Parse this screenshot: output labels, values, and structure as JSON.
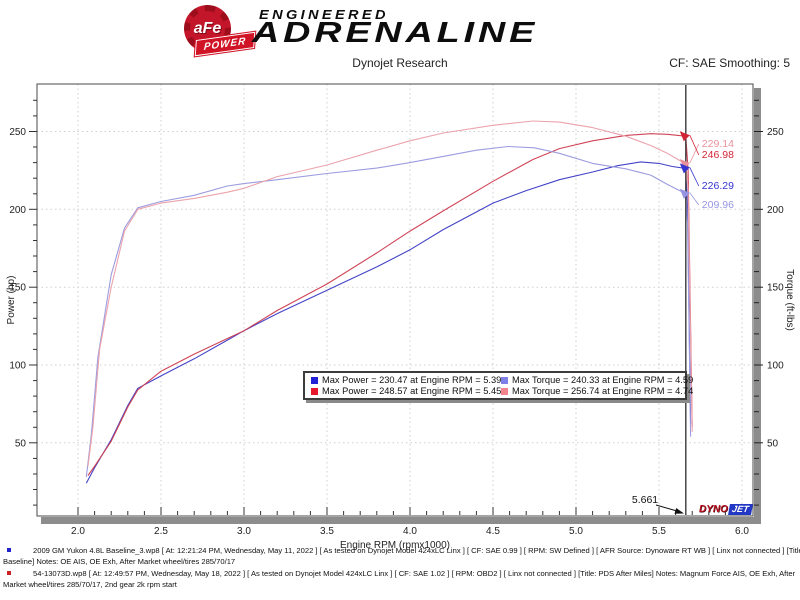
{
  "header": {
    "badge": {
      "brand": "aFe",
      "sub": "POWER"
    },
    "tagline_top": "ENGINEERED",
    "tagline_main": "ADRENALINE"
  },
  "titlebar": {
    "title": "Dynojet Research",
    "cf_label": "CF: SAE Smoothing: 5"
  },
  "watermark": {
    "dyno": "DYNO",
    "jet": "JET"
  },
  "chart_data": {
    "type": "line",
    "title": "Dynojet Research",
    "xlabel": "Engine RPM (rpmx1000)",
    "ylabel_left": "Power (hp)",
    "ylabel_right": "Torque (ft-lbs)",
    "xlim": [
      1.753,
      6.066
    ],
    "ylim": [
      3,
      280.5
    ],
    "x_ticks_major": [
      2.0,
      2.5,
      3.0,
      3.5,
      4.0,
      4.5,
      5.0,
      5.5,
      6.0
    ],
    "y_ticks_major": [
      50,
      100,
      150,
      200,
      250
    ],
    "x_minor_step": 0.1,
    "y_minor_step": 10,
    "grid": "dotted-at-majors",
    "legend_position": "center",
    "series": [
      {
        "id": "power-baseline",
        "name": "Power Baseline",
        "axis": "power",
        "color": "#4343c8",
        "points": [
          [
            2.05,
            24
          ],
          [
            2.1,
            34
          ],
          [
            2.2,
            52
          ],
          [
            2.3,
            74
          ],
          [
            2.36,
            85
          ],
          [
            2.5,
            93
          ],
          [
            2.7,
            104
          ],
          [
            2.9,
            116
          ],
          [
            3.0,
            122
          ],
          [
            3.2,
            133
          ],
          [
            3.5,
            148
          ],
          [
            3.8,
            163
          ],
          [
            4.0,
            174
          ],
          [
            4.2,
            187
          ],
          [
            4.5,
            204
          ],
          [
            4.7,
            212
          ],
          [
            4.9,
            219
          ],
          [
            5.1,
            224
          ],
          [
            5.25,
            228
          ],
          [
            5.39,
            230.47
          ],
          [
            5.5,
            229.5
          ],
          [
            5.58,
            227.5
          ],
          [
            5.661,
            226.29
          ],
          [
            5.672,
            200
          ],
          [
            5.69,
            62
          ]
        ]
      },
      {
        "id": "power-after",
        "name": "Power After",
        "axis": "power",
        "color": "#cf4456",
        "points": [
          [
            2.06,
            29
          ],
          [
            2.1,
            35
          ],
          [
            2.2,
            51
          ],
          [
            2.3,
            73
          ],
          [
            2.36,
            84
          ],
          [
            2.5,
            96
          ],
          [
            2.7,
            107
          ],
          [
            2.9,
            117
          ],
          [
            3.0,
            122
          ],
          [
            3.2,
            135
          ],
          [
            3.5,
            152
          ],
          [
            3.8,
            172
          ],
          [
            4.0,
            186
          ],
          [
            4.2,
            199
          ],
          [
            4.5,
            218
          ],
          [
            4.74,
            232
          ],
          [
            4.9,
            239
          ],
          [
            5.1,
            244
          ],
          [
            5.3,
            247.5
          ],
          [
            5.45,
            248.57
          ],
          [
            5.55,
            248.2
          ],
          [
            5.661,
            246.98
          ],
          [
            5.675,
            225
          ],
          [
            5.7,
            60
          ]
        ]
      },
      {
        "id": "torque-baseline",
        "name": "Torque Baseline",
        "axis": "torque",
        "color": "#9c9ce0",
        "points": [
          [
            2.05,
            28
          ],
          [
            2.08,
            55
          ],
          [
            2.12,
            105
          ],
          [
            2.2,
            158
          ],
          [
            2.28,
            188
          ],
          [
            2.36,
            201
          ],
          [
            2.5,
            205
          ],
          [
            2.7,
            209
          ],
          [
            2.9,
            215
          ],
          [
            3.0,
            216.5
          ],
          [
            3.2,
            219
          ],
          [
            3.5,
            223
          ],
          [
            3.8,
            226.5
          ],
          [
            4.0,
            230
          ],
          [
            4.2,
            234
          ],
          [
            4.4,
            238
          ],
          [
            4.59,
            240.33
          ],
          [
            4.75,
            239.5
          ],
          [
            4.9,
            236
          ],
          [
            5.1,
            229.5
          ],
          [
            5.3,
            226
          ],
          [
            5.45,
            222
          ],
          [
            5.55,
            216
          ],
          [
            5.661,
            209.96
          ],
          [
            5.672,
            190
          ],
          [
            5.69,
            54
          ]
        ]
      },
      {
        "id": "torque-after",
        "name": "Torque After",
        "axis": "torque",
        "color": "#eba3ac",
        "points": [
          [
            2.06,
            35
          ],
          [
            2.09,
            60
          ],
          [
            2.13,
            110
          ],
          [
            2.2,
            150
          ],
          [
            2.28,
            186
          ],
          [
            2.36,
            200
          ],
          [
            2.5,
            204
          ],
          [
            2.7,
            207
          ],
          [
            2.9,
            211
          ],
          [
            3.0,
            213.5
          ],
          [
            3.2,
            221
          ],
          [
            3.5,
            228.5
          ],
          [
            3.8,
            238
          ],
          [
            4.0,
            244
          ],
          [
            4.2,
            249
          ],
          [
            4.5,
            254
          ],
          [
            4.74,
            256.74
          ],
          [
            4.9,
            256
          ],
          [
            5.1,
            252.5
          ],
          [
            5.3,
            247
          ],
          [
            5.45,
            241
          ],
          [
            5.55,
            236
          ],
          [
            5.661,
            229.14
          ],
          [
            5.675,
            212
          ],
          [
            5.7,
            57
          ]
        ]
      }
    ],
    "cursor": {
      "rpm": 5.661,
      "label": "5.661",
      "readouts": [
        {
          "value": "229.14",
          "color": "#e8919c"
        },
        {
          "value": "246.98",
          "color": "#d32436"
        },
        {
          "value": "226.29",
          "color": "#3535cf"
        },
        {
          "value": "209.96",
          "color": "#9595e2"
        }
      ]
    },
    "legend": {
      "items": [
        {
          "color": "#2121d6",
          "text": "Max Power = 230.47 at Engine RPM = 5.39"
        },
        {
          "color": "#7f7fe8",
          "text": "Max Torque = 240.33 at Engine RPM = 4.59"
        },
        {
          "color": "#e6182b",
          "text": "Max Power = 248.57 at Engine RPM = 5.45"
        },
        {
          "color": "#f2848f",
          "text": "Max Torque = 256.74 at Engine RPM = 4.74"
        }
      ]
    }
  },
  "footnotes": [
    {
      "bullet_color": "#2222cc",
      "line1": "2009 GM Yukon 4.8L Baseline_3.wp8 [ At: 12:21:24 PM, Wednesday, May 11, 2022 ] [ As tested on Dynojet Model 424xLC Linx ] [ CF: SAE 0.99 ] [ RPM: SW Defined ] [ AFR Source: Dynoware RT WB ] [ Linx not connected ] [Title",
      "line2": "Baseline]  Notes: OE AIS, OE Exh, After Market wheel/tires 285/70/17"
    },
    {
      "bullet_color": "#cc2222",
      "line1": "54-13073D.wp8 [ At: 12:49:57 PM, Wednesday, May 18, 2022 ] [ As tested on Dynojet Model 424xLC Linx ] [ CF: SAE 1.02 ] [ RPM: OBD2 ] [ Linx not connected ] [Title: PDS After Miles]  Notes: Magnum Force  AIS, OE Exh, After",
      "line2": "Market wheel/tires 285/70/17, 2nd gear 2k rpm start"
    }
  ]
}
